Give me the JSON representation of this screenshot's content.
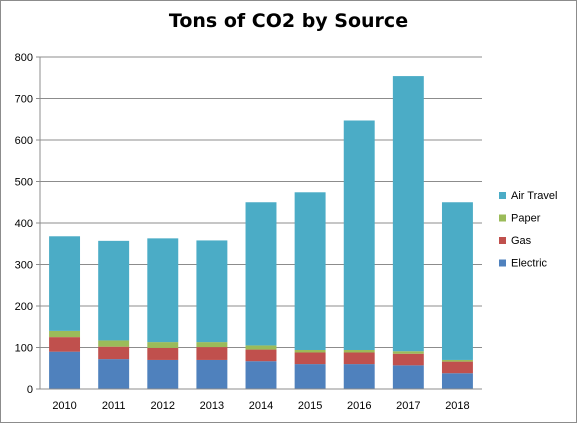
{
  "chart_data": {
    "type": "bar",
    "stacked": true,
    "title": "Tons of CO2 by Source",
    "xlabel": "",
    "ylabel": "",
    "categories": [
      "2010",
      "2011",
      "2012",
      "2013",
      "2014",
      "2015",
      "2016",
      "2017",
      "2018"
    ],
    "ylim": [
      0,
      800
    ],
    "yticks": [
      "0",
      "100",
      "200",
      "300",
      "400",
      "500",
      "600",
      "700",
      "800"
    ],
    "grid": true,
    "legend_position": "right",
    "series": [
      {
        "name": "Electric",
        "color": "#4f81bd",
        "values": [
          90,
          72,
          70,
          70,
          67,
          60,
          60,
          57,
          38
        ]
      },
      {
        "name": "Gas",
        "color": "#c0504d",
        "values": [
          35,
          30,
          29,
          31,
          28,
          28,
          28,
          28,
          28
        ]
      },
      {
        "name": "Paper",
        "color": "#9bbb59",
        "values": [
          15,
          15,
          14,
          12,
          10,
          6,
          6,
          6,
          4
        ]
      },
      {
        "name": "Air Travel",
        "color": "#4bacc6",
        "values": [
          228,
          240,
          250,
          245,
          345,
          380,
          553,
          663,
          380
        ]
      }
    ]
  }
}
